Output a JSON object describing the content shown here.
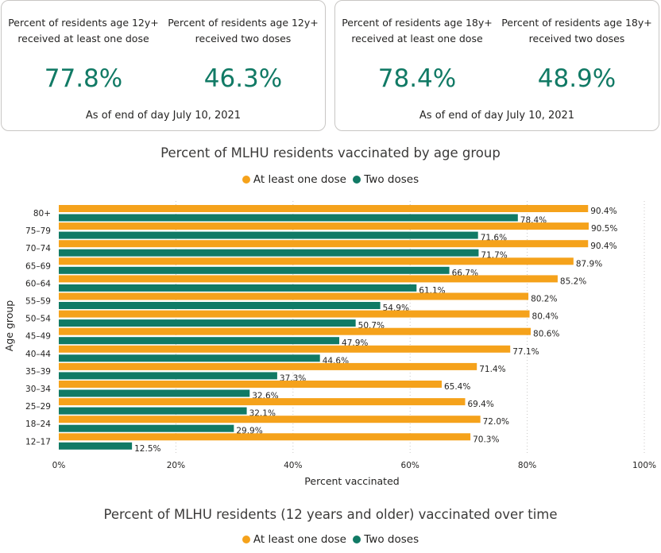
{
  "cards": [
    {
      "metrics": [
        {
          "label_line1": "Percent of residents age 12y+",
          "label_line2": "received at least one dose",
          "value": "77.8%"
        },
        {
          "label_line1": "Percent of residents age 12y+",
          "label_line2": "received two doses",
          "value": "46.3%"
        }
      ],
      "as_of": "As of end of day July 10, 2021"
    },
    {
      "metrics": [
        {
          "label_line1": "Percent of residents age 18y+",
          "label_line2": "received at least one dose",
          "value": "78.4%"
        },
        {
          "label_line1": "Percent of residents age 18y+",
          "label_line2": "received two doses",
          "value": "48.9%"
        }
      ],
      "as_of": "As of end of day July 10, 2021"
    }
  ],
  "legend": {
    "one_dose": "At least one dose",
    "two_doses": "Two doses"
  },
  "colors": {
    "one_dose": "#f5a21b",
    "two_doses": "#117a65",
    "value_text": "#117a65"
  },
  "chart_data": {
    "type": "bar",
    "orientation": "horizontal",
    "title": "Percent of MLHU residents vaccinated by age group",
    "xlabel": "Percent vaccinated",
    "ylabel": "Age group",
    "xlim": [
      0,
      100
    ],
    "xticks": [
      "0%",
      "20%",
      "40%",
      "60%",
      "80%",
      "100%"
    ],
    "legend_position": "top-center",
    "categories": [
      "80+",
      "75–79",
      "70–74",
      "65–69",
      "60–64",
      "55–59",
      "50–54",
      "45–49",
      "40–44",
      "35–39",
      "30–34",
      "25–29",
      "18–24",
      "12–17"
    ],
    "series": [
      {
        "name": "At least one dose",
        "values": [
          90.4,
          90.5,
          90.4,
          87.9,
          85.2,
          80.2,
          80.4,
          80.6,
          77.1,
          71.4,
          65.4,
          69.4,
          72.0,
          70.3
        ]
      },
      {
        "name": "Two doses",
        "values": [
          78.4,
          71.6,
          71.7,
          66.7,
          61.1,
          54.9,
          50.7,
          47.9,
          44.6,
          37.3,
          32.6,
          32.1,
          29.9,
          12.5
        ]
      }
    ]
  },
  "second_chart": {
    "title": "Percent of MLHU residents (12 years and older) vaccinated over time"
  }
}
